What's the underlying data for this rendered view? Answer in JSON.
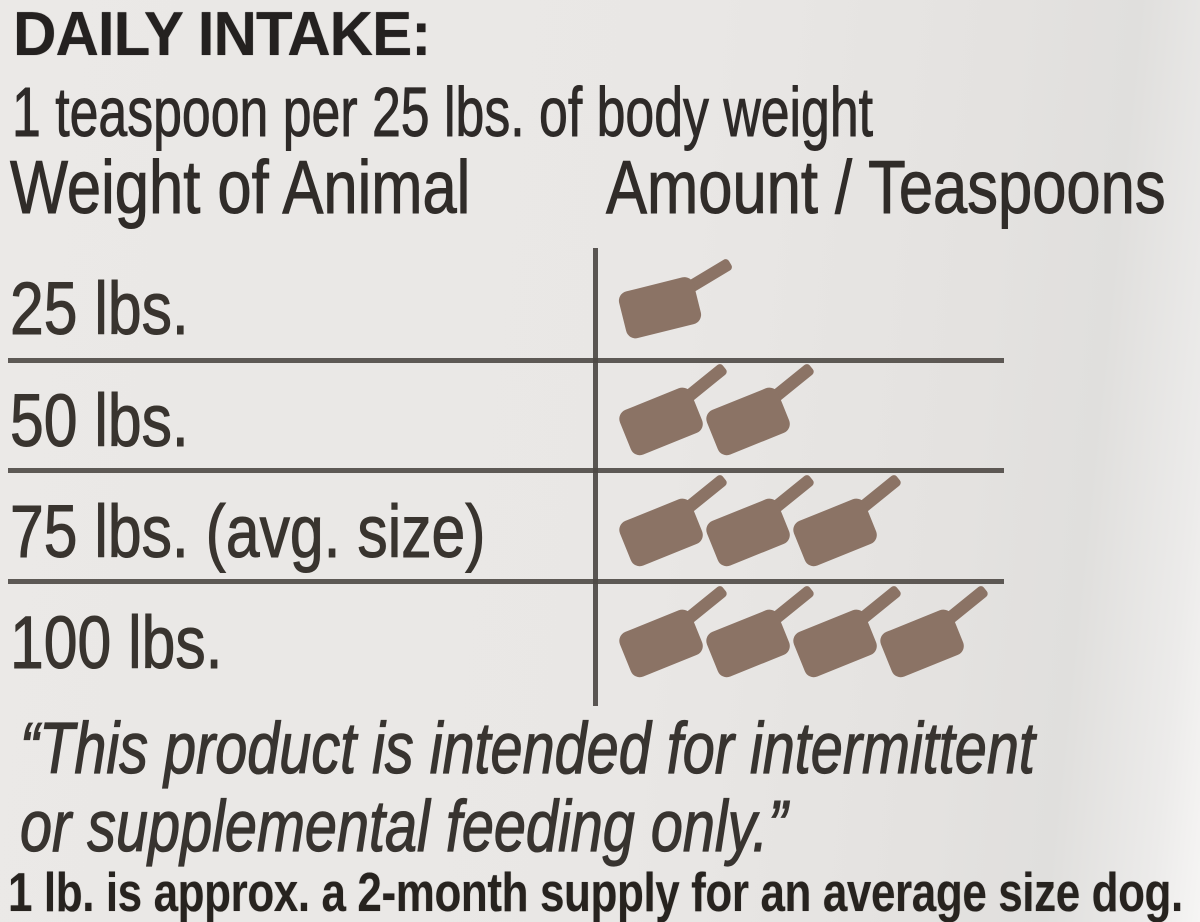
{
  "panel": {
    "title": "DAILY INTAKE:",
    "subtitle": "1 teaspoon per 25 lbs. of body weight",
    "table": {
      "columns": [
        "Weight of Animal",
        "Amount / Teaspoons"
      ],
      "rows": [
        {
          "weight": "25 lbs.",
          "teaspoons": 1
        },
        {
          "weight": "50 lbs.",
          "teaspoons": 2
        },
        {
          "weight": "75 lbs. (avg. size)",
          "teaspoons": 3
        },
        {
          "weight": "100 lbs.",
          "teaspoons": 4
        }
      ],
      "scoop_icon": "teaspoon-scoop"
    },
    "quote": {
      "line1": "“This product is intended for intermittent",
      "line2": "or supplemental feeding only.”"
    },
    "footnote": "1 lb. is approx. a 2-month supply for an average size dog.",
    "colors": {
      "scoop": "#8b7365",
      "rule": "#4e4945",
      "ink": "#2b2724",
      "background": "#e9e7e5"
    }
  }
}
